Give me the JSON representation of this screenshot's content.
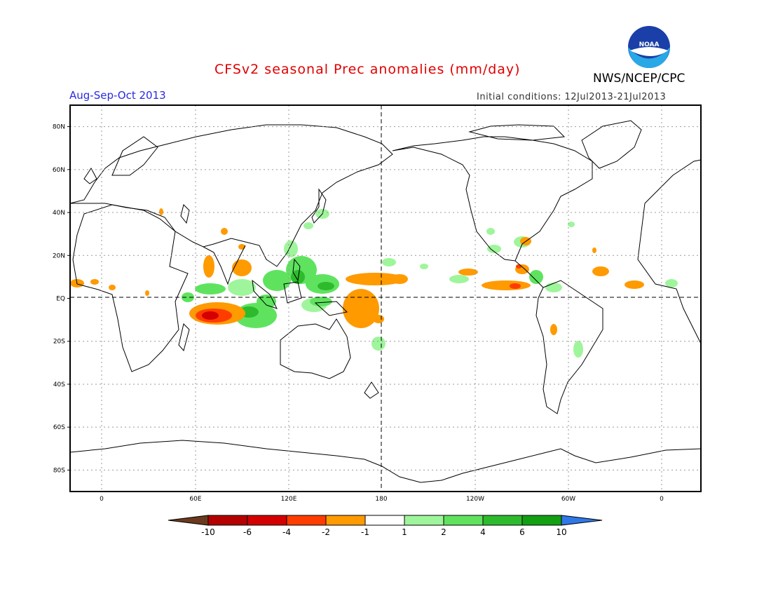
{
  "title": "CFSv2 seasonal Prec anomalies (mm/day)",
  "agency": "NWS/NCEP/CPC",
  "logo_text": "NOAA",
  "period": "Aug-Sep-Oct 2013",
  "initial_conditions": "Initial conditions: 12Jul2013-21Jul2013",
  "map": {
    "projection": "equirectangular",
    "lon_range": [
      -10,
      350
    ],
    "lat_range": [
      -90,
      90
    ],
    "lat_ticks": [
      "80N",
      "60N",
      "40N",
      "20N",
      "EQ",
      "20S",
      "40S",
      "60S",
      "80S"
    ],
    "lon_ticks": [
      "0",
      "60E",
      "120E",
      "180",
      "120W",
      "60W",
      "0"
    ],
    "grid": "dotted"
  },
  "colorbar": {
    "labels": [
      "-10",
      "-6",
      "-4",
      "-2",
      "-1",
      "1",
      "2",
      "4",
      "6",
      "10"
    ],
    "colors": [
      "#6b3a1e",
      "#b40000",
      "#d40000",
      "#ff3c00",
      "#ff9a00",
      "#ffffff",
      "#9ff59b",
      "#5fe35f",
      "#2dbb2d",
      "#129f12",
      "#2f78e8"
    ]
  }
}
